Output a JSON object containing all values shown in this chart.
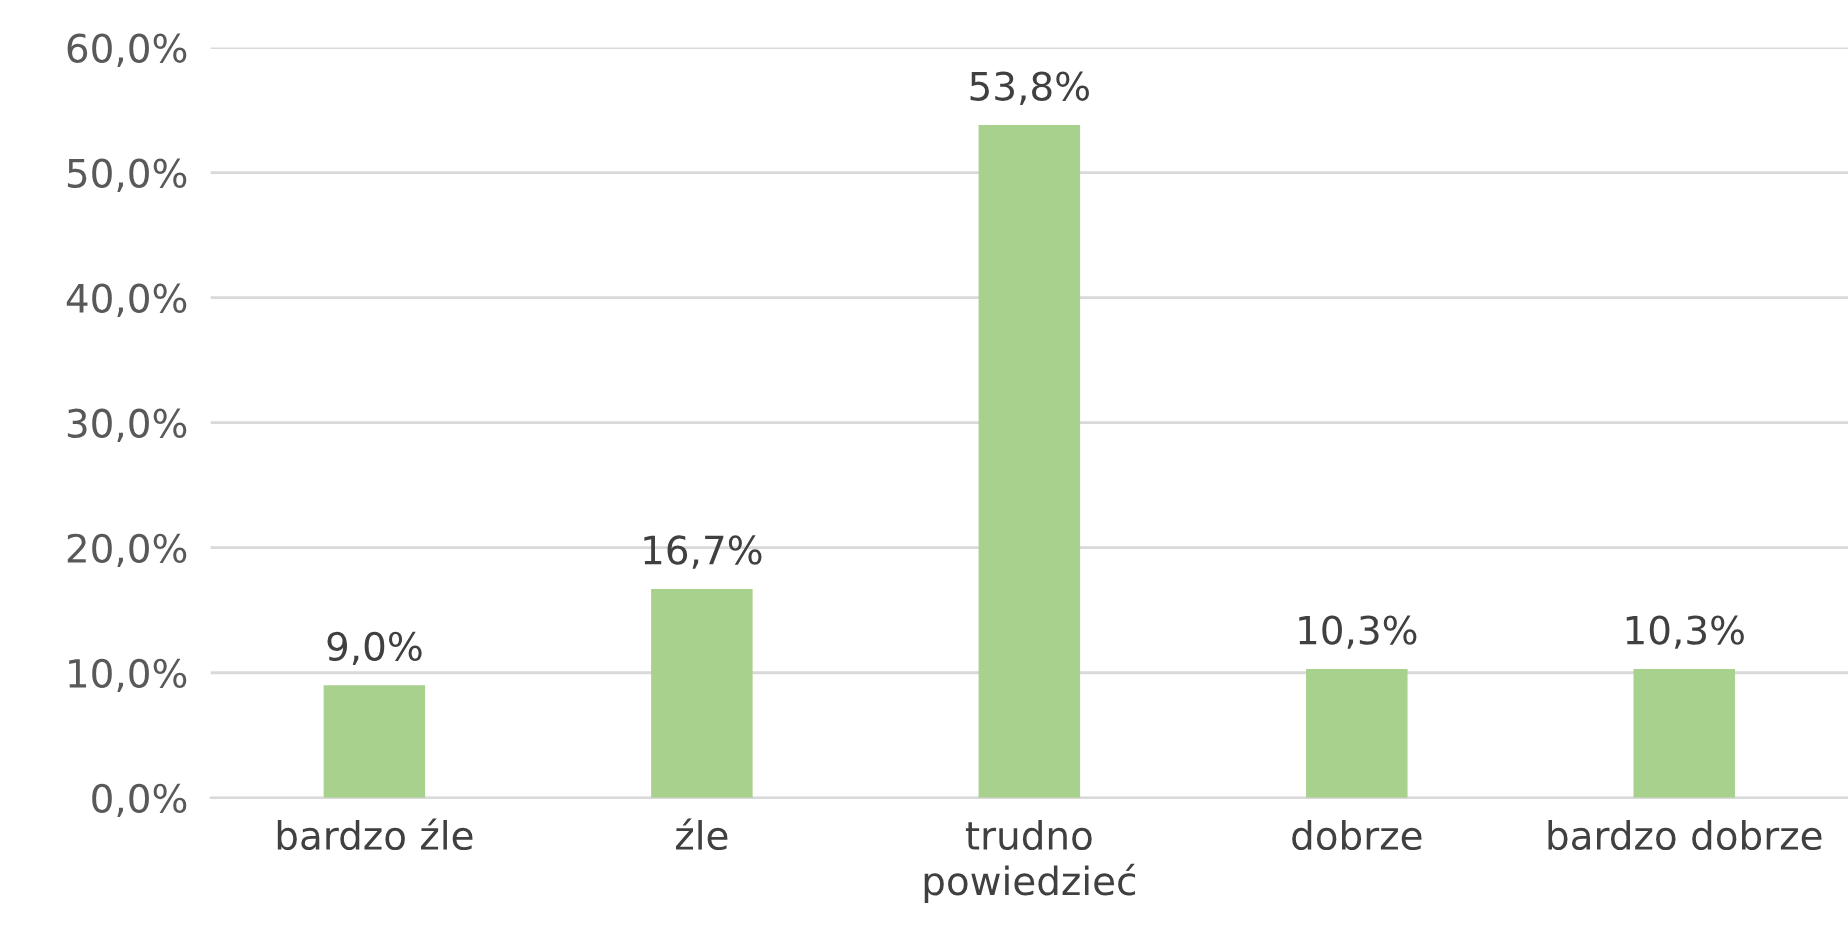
{
  "chart_data": {
    "type": "bar",
    "categories": [
      "bardzo źle",
      "źle",
      "trudno\npowiedzieć",
      "dobrze",
      "bardzo dobrze"
    ],
    "values": [
      9.0,
      16.7,
      53.8,
      10.3,
      10.3
    ],
    "color": "#a9d18e",
    "value_labels": [
      "9,0%",
      "16,7%",
      "53,8%",
      "10,3%",
      "10,3%"
    ],
    "ylim": [
      0,
      60
    ],
    "yticks": [
      {
        "value": 0,
        "label": "0,0%"
      },
      {
        "value": 10,
        "label": "10,0%"
      },
      {
        "value": 20,
        "label": "20,0%"
      },
      {
        "value": 30,
        "label": "30,0%"
      },
      {
        "value": 40,
        "label": "40,0%"
      },
      {
        "value": 50,
        "label": "50,0%"
      },
      {
        "value": 60,
        "label": "60,0%"
      }
    ],
    "grid": "y",
    "legend": false
  }
}
